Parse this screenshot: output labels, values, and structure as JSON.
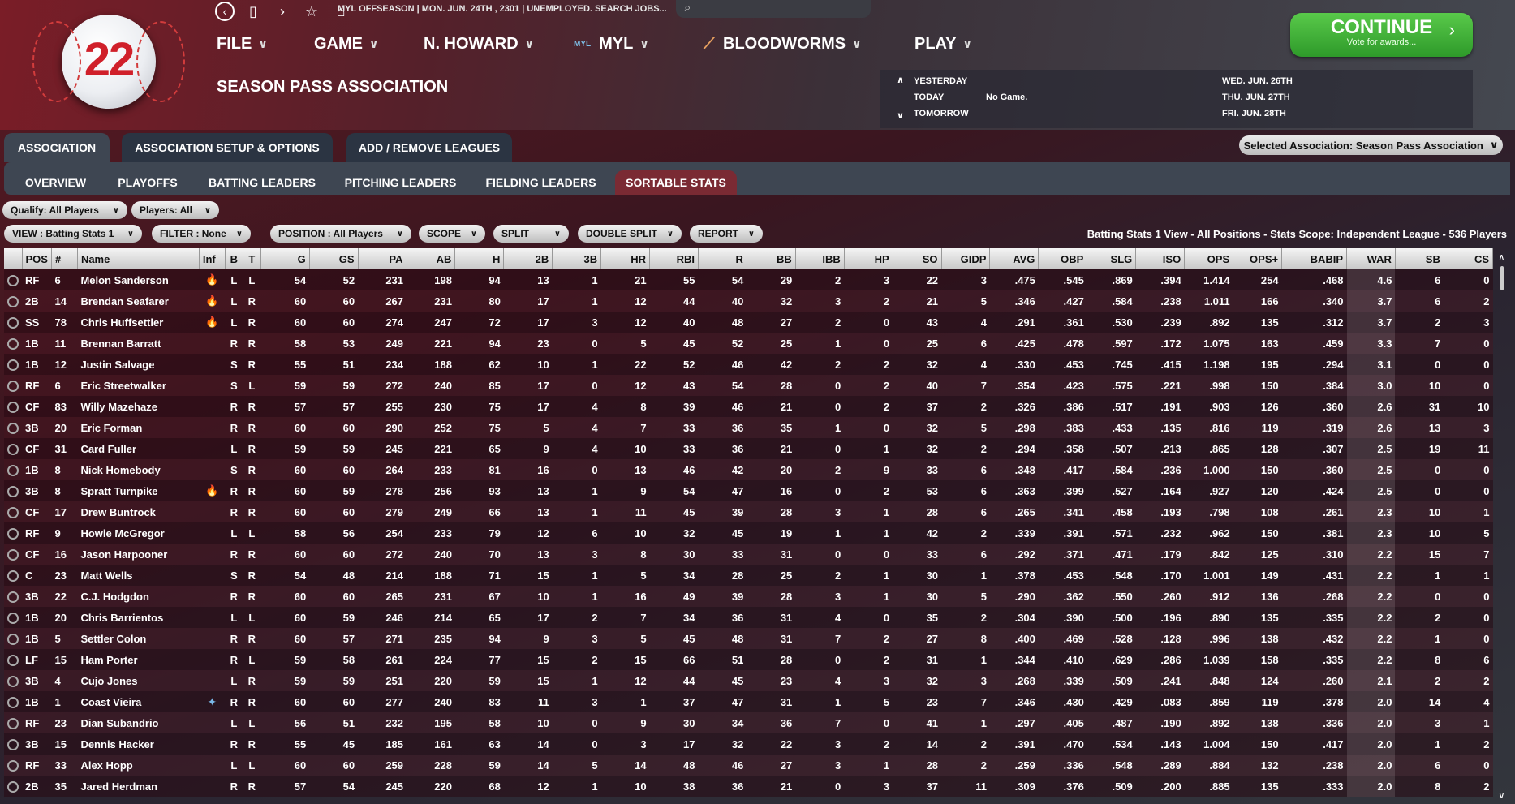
{
  "logo_number": "22",
  "status_text": "MYL OFFSEASON  |  MON. JUN. 24TH , 2301  |  UNEMPLOYED. SEARCH JOBS...",
  "menu": [
    {
      "label": "FILE"
    },
    {
      "label": "GAME"
    },
    {
      "label": "N. HOWARD"
    },
    {
      "label": "MYL",
      "logo": "MYL"
    },
    {
      "label": "BLOODWORMS"
    },
    {
      "label": "PLAY"
    }
  ],
  "assoc_title": "SEASON PASS ASSOCIATION",
  "dates": {
    "yesterday": "YESTERDAY",
    "today": "TODAY",
    "tomorrow": "TOMORROW",
    "today_note": "No Game.",
    "d1": "WED. JUN. 26TH",
    "d2": "THU. JUN. 27TH",
    "d3": "FRI. JUN. 28TH"
  },
  "continue": {
    "label": "CONTINUE",
    "sub": "Vote for awards..."
  },
  "tabs": [
    "ASSOCIATION",
    "ASSOCIATION SETUP & OPTIONS",
    "ADD / REMOVE LEAGUES"
  ],
  "selected_assoc": "Selected Association: Season Pass Association",
  "subtabs": [
    "OVERVIEW",
    "PLAYOFFS",
    "BATTING LEADERS",
    "PITCHING LEADERS",
    "FIELDING LEADERS",
    "SORTABLE STATS"
  ],
  "filters": {
    "qualify": "Qualify: All Players",
    "players": "Players: All",
    "view": "VIEW : Batting Stats 1",
    "filter": "FILTER : None",
    "position": "POSITION : All Players",
    "scope": "SCOPE",
    "split": "SPLIT",
    "double_split": "DOUBLE SPLIT",
    "report": "REPORT"
  },
  "view_info": "Batting Stats 1 View - All Positions - Stats Scope: Independent League - 536 Players",
  "columns": [
    "",
    "POS",
    "#",
    "Name",
    "Inf",
    "B",
    "T",
    "G",
    "GS",
    "PA",
    "AB",
    "H",
    "2B",
    "3B",
    "HR",
    "RBI",
    "R",
    "BB",
    "IBB",
    "HP",
    "SO",
    "GIDP",
    "AVG",
    "OBP",
    "SLG",
    "ISO",
    "OPS",
    "OPS+",
    "BABIP",
    "WAR",
    "SB",
    "CS"
  ],
  "rows": [
    [
      "RF",
      "6",
      "Melon Sanderson",
      "fire",
      "L",
      "L",
      "54",
      "52",
      "231",
      "198",
      "94",
      "13",
      "1",
      "21",
      "55",
      "54",
      "29",
      "2",
      "3",
      "22",
      "3",
      ".475",
      ".545",
      ".869",
      ".394",
      "1.414",
      "254",
      ".468",
      "4.6",
      "6",
      "0"
    ],
    [
      "2B",
      "14",
      "Brendan Seafarer",
      "fire",
      "L",
      "R",
      "60",
      "60",
      "267",
      "231",
      "80",
      "17",
      "1",
      "12",
      "44",
      "40",
      "32",
      "3",
      "2",
      "21",
      "5",
      ".346",
      ".427",
      ".584",
      ".238",
      "1.011",
      "166",
      ".340",
      "3.7",
      "6",
      "2"
    ],
    [
      "SS",
      "78",
      "Chris Huffsettler",
      "fire",
      "L",
      "R",
      "60",
      "60",
      "274",
      "247",
      "72",
      "17",
      "3",
      "12",
      "40",
      "48",
      "27",
      "2",
      "0",
      "43",
      "4",
      ".291",
      ".361",
      ".530",
      ".239",
      ".892",
      "135",
      ".312",
      "3.7",
      "2",
      "3"
    ],
    [
      "1B",
      "11",
      "Brennan Barratt",
      "",
      "R",
      "R",
      "58",
      "53",
      "249",
      "221",
      "94",
      "23",
      "0",
      "5",
      "45",
      "52",
      "25",
      "1",
      "0",
      "25",
      "6",
      ".425",
      ".478",
      ".597",
      ".172",
      "1.075",
      "163",
      ".459",
      "3.3",
      "7",
      "0"
    ],
    [
      "1B",
      "12",
      "Justin Salvage",
      "",
      "S",
      "R",
      "55",
      "51",
      "234",
      "188",
      "62",
      "10",
      "1",
      "22",
      "52",
      "46",
      "42",
      "2",
      "2",
      "32",
      "4",
      ".330",
      ".453",
      ".745",
      ".415",
      "1.198",
      "195",
      ".294",
      "3.1",
      "0",
      "0"
    ],
    [
      "RF",
      "6",
      "Eric Streetwalker",
      "",
      "S",
      "L",
      "59",
      "59",
      "272",
      "240",
      "85",
      "17",
      "0",
      "12",
      "43",
      "54",
      "28",
      "0",
      "2",
      "40",
      "7",
      ".354",
      ".423",
      ".575",
      ".221",
      ".998",
      "150",
      ".384",
      "3.0",
      "10",
      "0"
    ],
    [
      "CF",
      "83",
      "Willy Mazehaze",
      "",
      "R",
      "R",
      "57",
      "57",
      "255",
      "230",
      "75",
      "17",
      "4",
      "8",
      "39",
      "46",
      "21",
      "0",
      "2",
      "37",
      "2",
      ".326",
      ".386",
      ".517",
      ".191",
      ".903",
      "126",
      ".360",
      "2.6",
      "31",
      "10"
    ],
    [
      "3B",
      "20",
      "Eric Forman",
      "",
      "R",
      "R",
      "60",
      "60",
      "290",
      "252",
      "75",
      "5",
      "4",
      "7",
      "33",
      "36",
      "35",
      "1",
      "0",
      "32",
      "5",
      ".298",
      ".383",
      ".433",
      ".135",
      ".816",
      "119",
      ".319",
      "2.6",
      "13",
      "3"
    ],
    [
      "CF",
      "31",
      "Card Fuller",
      "",
      "L",
      "R",
      "59",
      "59",
      "245",
      "221",
      "65",
      "9",
      "4",
      "10",
      "33",
      "36",
      "21",
      "0",
      "1",
      "32",
      "2",
      ".294",
      ".358",
      ".507",
      ".213",
      ".865",
      "128",
      ".307",
      "2.5",
      "19",
      "11"
    ],
    [
      "1B",
      "8",
      "Nick Homebody",
      "",
      "S",
      "R",
      "60",
      "60",
      "264",
      "233",
      "81",
      "16",
      "0",
      "13",
      "46",
      "42",
      "20",
      "2",
      "9",
      "33",
      "6",
      ".348",
      ".417",
      ".584",
      ".236",
      "1.000",
      "150",
      ".360",
      "2.5",
      "0",
      "0"
    ],
    [
      "3B",
      "8",
      "Spratt Turnpike",
      "fire",
      "R",
      "R",
      "60",
      "59",
      "278",
      "256",
      "93",
      "13",
      "1",
      "9",
      "54",
      "47",
      "16",
      "0",
      "2",
      "53",
      "6",
      ".363",
      ".399",
      ".527",
      ".164",
      ".927",
      "120",
      ".424",
      "2.5",
      "0",
      "0"
    ],
    [
      "CF",
      "17",
      "Drew Buntrock",
      "",
      "R",
      "R",
      "60",
      "60",
      "279",
      "249",
      "66",
      "13",
      "1",
      "11",
      "45",
      "39",
      "28",
      "3",
      "1",
      "28",
      "6",
      ".265",
      ".341",
      ".458",
      ".193",
      ".798",
      "108",
      ".261",
      "2.3",
      "10",
      "1"
    ],
    [
      "RF",
      "9",
      "Howie McGregor",
      "",
      "L",
      "L",
      "58",
      "56",
      "254",
      "233",
      "79",
      "12",
      "6",
      "10",
      "32",
      "45",
      "19",
      "1",
      "1",
      "42",
      "2",
      ".339",
      ".391",
      ".571",
      ".232",
      ".962",
      "150",
      ".381",
      "2.3",
      "10",
      "5"
    ],
    [
      "CF",
      "16",
      "Jason Harpooner",
      "",
      "R",
      "R",
      "60",
      "60",
      "272",
      "240",
      "70",
      "13",
      "3",
      "8",
      "30",
      "33",
      "31",
      "0",
      "0",
      "33",
      "6",
      ".292",
      ".371",
      ".471",
      ".179",
      ".842",
      "125",
      ".310",
      "2.2",
      "15",
      "7"
    ],
    [
      "C",
      "23",
      "Matt Wells",
      "",
      "S",
      "R",
      "54",
      "48",
      "214",
      "188",
      "71",
      "15",
      "1",
      "5",
      "34",
      "28",
      "25",
      "2",
      "1",
      "30",
      "1",
      ".378",
      ".453",
      ".548",
      ".170",
      "1.001",
      "149",
      ".431",
      "2.2",
      "1",
      "1"
    ],
    [
      "3B",
      "22",
      "C.J. Hodgdon",
      "",
      "R",
      "R",
      "60",
      "60",
      "265",
      "231",
      "67",
      "10",
      "1",
      "16",
      "49",
      "39",
      "28",
      "3",
      "1",
      "30",
      "5",
      ".290",
      ".362",
      ".550",
      ".260",
      ".912",
      "136",
      ".268",
      "2.2",
      "0",
      "0"
    ],
    [
      "1B",
      "20",
      "Chris Barrientos",
      "",
      "L",
      "L",
      "60",
      "59",
      "246",
      "214",
      "65",
      "17",
      "2",
      "7",
      "34",
      "36",
      "31",
      "4",
      "0",
      "35",
      "2",
      ".304",
      ".390",
      ".500",
      ".196",
      ".890",
      "135",
      ".335",
      "2.2",
      "2",
      "0"
    ],
    [
      "1B",
      "5",
      "Settler Colon",
      "",
      "R",
      "R",
      "60",
      "57",
      "271",
      "235",
      "94",
      "9",
      "3",
      "5",
      "45",
      "48",
      "31",
      "7",
      "2",
      "27",
      "8",
      ".400",
      ".469",
      ".528",
      ".128",
      ".996",
      "138",
      ".432",
      "2.2",
      "1",
      "0"
    ],
    [
      "LF",
      "15",
      "Ham Porter",
      "",
      "R",
      "L",
      "59",
      "58",
      "261",
      "224",
      "77",
      "15",
      "2",
      "15",
      "66",
      "51",
      "28",
      "0",
      "2",
      "31",
      "1",
      ".344",
      ".410",
      ".629",
      ".286",
      "1.039",
      "158",
      ".335",
      "2.2",
      "8",
      "6"
    ],
    [
      "3B",
      "4",
      "Cujo Jones",
      "",
      "L",
      "R",
      "59",
      "59",
      "251",
      "220",
      "59",
      "15",
      "1",
      "12",
      "44",
      "45",
      "23",
      "4",
      "3",
      "32",
      "3",
      ".268",
      ".339",
      ".509",
      ".241",
      ".848",
      "124",
      ".260",
      "2.1",
      "2",
      "2"
    ],
    [
      "1B",
      "1",
      "Coast Vieira",
      "star",
      "R",
      "R",
      "60",
      "60",
      "277",
      "240",
      "83",
      "11",
      "3",
      "1",
      "37",
      "47",
      "31",
      "1",
      "5",
      "23",
      "7",
      ".346",
      ".430",
      ".429",
      ".083",
      ".859",
      "119",
      ".378",
      "2.0",
      "14",
      "4"
    ],
    [
      "RF",
      "23",
      "Dian Subandrio",
      "",
      "L",
      "L",
      "56",
      "51",
      "232",
      "195",
      "58",
      "10",
      "0",
      "9",
      "30",
      "34",
      "36",
      "7",
      "0",
      "41",
      "1",
      ".297",
      ".405",
      ".487",
      ".190",
      ".892",
      "138",
      ".336",
      "2.0",
      "3",
      "1"
    ],
    [
      "3B",
      "15",
      "Dennis Hacker",
      "",
      "R",
      "R",
      "55",
      "45",
      "185",
      "161",
      "63",
      "14",
      "0",
      "3",
      "17",
      "32",
      "22",
      "3",
      "2",
      "14",
      "2",
      ".391",
      ".470",
      ".534",
      ".143",
      "1.004",
      "150",
      ".417",
      "2.0",
      "1",
      "2"
    ],
    [
      "RF",
      "33",
      "Alex Hopp",
      "",
      "L",
      "L",
      "60",
      "60",
      "259",
      "228",
      "59",
      "14",
      "5",
      "14",
      "48",
      "46",
      "27",
      "3",
      "1",
      "28",
      "2",
      ".259",
      ".336",
      ".548",
      ".289",
      ".884",
      "132",
      ".238",
      "2.0",
      "6",
      "0"
    ],
    [
      "2B",
      "35",
      "Jared Herdman",
      "",
      "R",
      "R",
      "57",
      "54",
      "245",
      "220",
      "68",
      "12",
      "1",
      "10",
      "38",
      "36",
      "21",
      "0",
      "3",
      "37",
      "11",
      ".309",
      ".376",
      ".509",
      ".200",
      ".885",
      "135",
      ".333",
      "2.0",
      "8",
      "2"
    ]
  ]
}
